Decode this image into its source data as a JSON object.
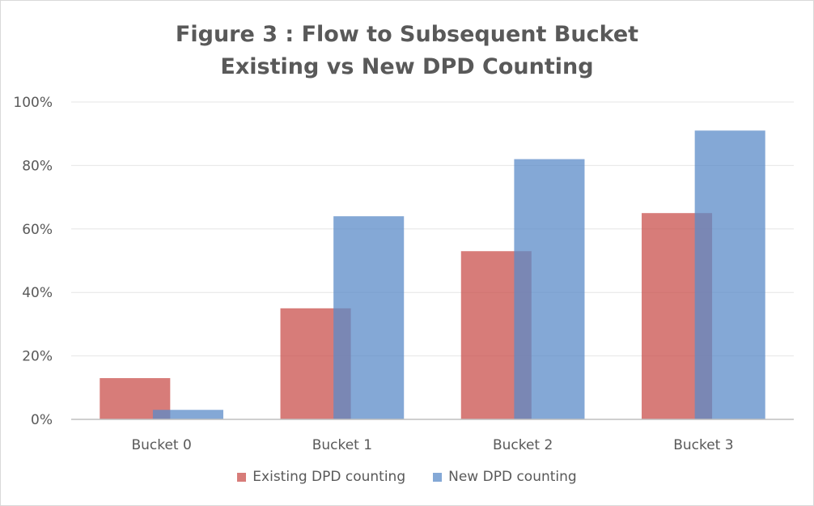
{
  "chart_data": {
    "type": "bar",
    "title": "Figure 3 :  Flow to Subsequent Bucket",
    "subtitle": "Existing vs New DPD Counting",
    "xlabel": "",
    "ylabel": "",
    "categories": [
      "Bucket 0",
      "Bucket 1",
      "Bucket 2",
      "Bucket 3"
    ],
    "series": [
      {
        "name": "Existing DPD counting",
        "values": [
          13,
          35,
          53,
          65
        ],
        "color": "#c9504c"
      },
      {
        "name": "New DPD counting",
        "values": [
          3,
          64,
          82,
          91
        ],
        "color": "#5b8bc8"
      }
    ],
    "ylim": [
      0,
      100
    ],
    "yticks": [
      0,
      20,
      40,
      60,
      80,
      100
    ],
    "ytick_labels": [
      "0%",
      "20%",
      "40%",
      "60%",
      "80%",
      "100%"
    ],
    "overlap": true,
    "grid": true,
    "legend_position": "bottom"
  }
}
